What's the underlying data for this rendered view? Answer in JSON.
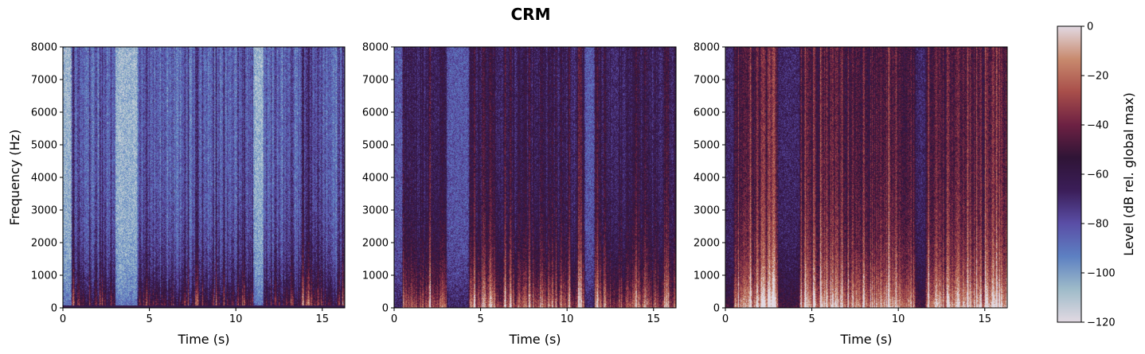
{
  "figure": {
    "title": "CRM"
  },
  "colorbar": {
    "label": "Level (dB rel. global max)",
    "ticks": [
      0,
      -20,
      -40,
      -60,
      -80,
      -100,
      -120
    ],
    "range": [
      -120,
      0
    ],
    "colormap": "twilight_shifted",
    "colors": [
      "#e2d9e2",
      "#9ebbc9",
      "#5d80c2",
      "#5a4ea6",
      "#3b1e59",
      "#2f1436",
      "#6d2143",
      "#a84e4a",
      "#c88a6e",
      "#e2d9e2"
    ]
  },
  "chart_data": [
    {
      "type": "heatmap",
      "panel": 1,
      "title": "",
      "xlabel": "Time (s)",
      "ylabel": "Frequency (Hz)",
      "xlim": [
        0,
        16.3
      ],
      "ylim": [
        0,
        8000
      ],
      "xticks": [
        0,
        5,
        10,
        15
      ],
      "yticks": [
        0,
        1000,
        2000,
        3000,
        4000,
        5000,
        6000,
        7000,
        8000
      ],
      "colorbar_range_db": [
        -120,
        0
      ],
      "mean_level_db": -108,
      "speech_segments_s": [
        [
          0.5,
          3.0
        ],
        [
          4.3,
          11.0
        ],
        [
          11.6,
          16.3
        ]
      ]
    },
    {
      "type": "heatmap",
      "panel": 2,
      "title": "",
      "xlabel": "Time (s)",
      "ylabel": "",
      "xlim": [
        0,
        16.3
      ],
      "ylim": [
        0,
        8000
      ],
      "xticks": [
        0,
        5,
        10,
        15
      ],
      "yticks": [
        0,
        1000,
        2000,
        3000,
        4000,
        5000,
        6000,
        7000,
        8000
      ],
      "colorbar_range_db": [
        -120,
        0
      ],
      "mean_level_db": -85,
      "speech_segments_s": [
        [
          0.5,
          3.0
        ],
        [
          4.3,
          11.0
        ],
        [
          11.6,
          16.3
        ]
      ]
    },
    {
      "type": "heatmap",
      "panel": 3,
      "title": "",
      "xlabel": "Time (s)",
      "ylabel": "",
      "xlim": [
        0,
        16.3
      ],
      "ylim": [
        0,
        8000
      ],
      "xticks": [
        0,
        5,
        10,
        15
      ],
      "yticks": [
        0,
        1000,
        2000,
        3000,
        4000,
        5000,
        6000,
        7000,
        8000
      ],
      "colorbar_range_db": [
        -120,
        0
      ],
      "mean_level_db": -70,
      "speech_segments_s": [
        [
          0.5,
          3.0
        ],
        [
          4.3,
          11.0
        ],
        [
          11.6,
          16.3
        ]
      ]
    }
  ]
}
